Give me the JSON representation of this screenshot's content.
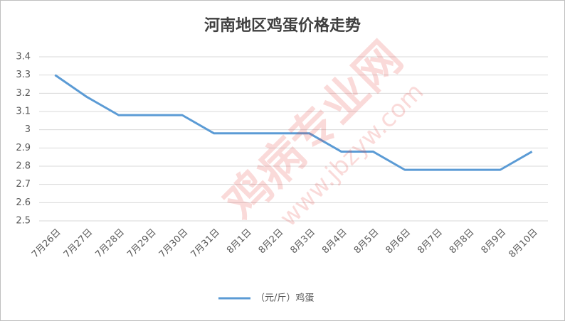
{
  "chart_data": {
    "type": "line",
    "title": "河南地区鸡蛋价格走势",
    "categories": [
      "7月26日",
      "7月27日",
      "7月28日",
      "7月29日",
      "7月30日",
      "7月31日",
      "8月1日",
      "8月2日",
      "8月3日",
      "8月4日",
      "8月5日",
      "8月6日",
      "8月7日",
      "8月8日",
      "8月9日",
      "8月10日"
    ],
    "series": [
      {
        "name": "（元/斤）鸡蛋",
        "color": "#5b9bd5",
        "values": [
          3.3,
          3.18,
          3.08,
          3.08,
          3.08,
          2.98,
          2.98,
          2.98,
          2.98,
          2.88,
          2.88,
          2.78,
          2.78,
          2.78,
          2.78,
          2.88
        ]
      }
    ],
    "ylim": [
      2.5,
      3.4
    ],
    "yticks": [
      2.5,
      2.6,
      2.7,
      2.8,
      2.9,
      3,
      3.1,
      3.2,
      3.3,
      3.4
    ],
    "grid": true,
    "legend": "bottom",
    "watermark": "鸡病专业网",
    "watermark_url": "www.jbzyw.com"
  }
}
